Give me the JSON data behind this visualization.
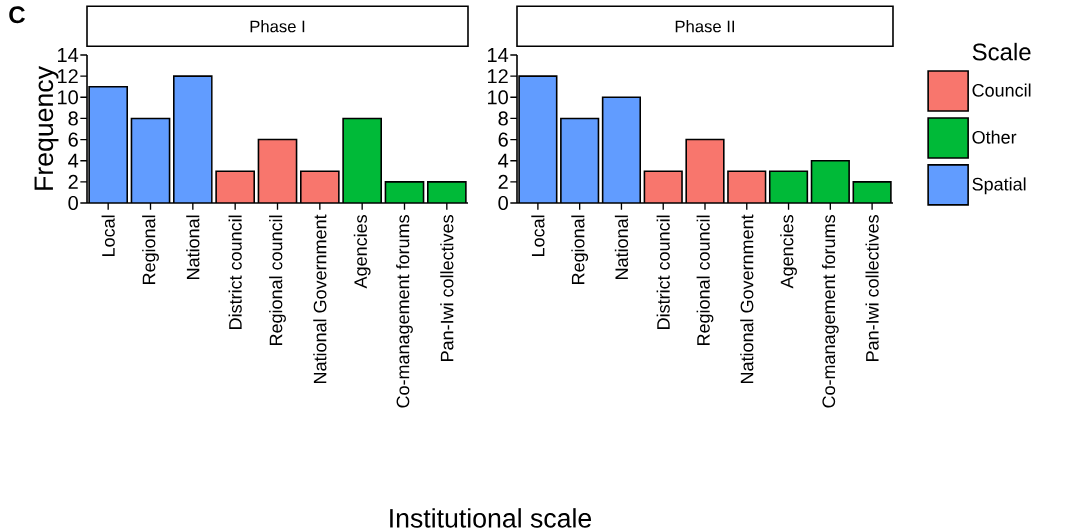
{
  "chart_data": [
    {
      "type": "bar",
      "title": "Phase I",
      "ylabel": "Frequency",
      "xlabel": "Institutional scale",
      "annotations": [
        "C"
      ],
      "categories": [
        "Local",
        "Regional",
        "National",
        "District council",
        "Regional council",
        "National Government",
        "Agencies",
        "Co-management forums",
        "Pan-Iwi collectives"
      ],
      "series": [
        {
          "color": "#f8766d",
          "values": [
            null,
            null,
            null,
            3,
            6,
            3,
            null,
            null,
            null
          ]
        },
        {
          "color": "#00ba38",
          "values": [
            null,
            null,
            null,
            null,
            null,
            null,
            8,
            2,
            2
          ]
        },
        {
          "color": "#619cff",
          "values": [
            11,
            8,
            12,
            null,
            null,
            null,
            null,
            null,
            null
          ]
        }
      ],
      "ylim": [
        0,
        14
      ],
      "yticks": [
        0,
        2,
        4,
        6,
        8,
        10,
        12,
        14
      ]
    },
    {
      "type": "bar",
      "title": "Phase II",
      "legend": "right",
      "legend_title": "Scale",
      "categories": [
        "Local",
        "Regional",
        "National",
        "District council",
        "Regional council",
        "National Government",
        "Agencies",
        "Co-management forums",
        "Pan-Iwi collectives"
      ],
      "series": [
        {
          "name": "Council",
          "color": "#f8766d",
          "values": [
            null,
            null,
            null,
            3,
            6,
            3,
            null,
            null,
            null
          ]
        },
        {
          "name": "Other",
          "color": "#00ba38",
          "values": [
            null,
            null,
            null,
            null,
            null,
            null,
            3,
            4,
            2
          ]
        },
        {
          "name": "Spatial",
          "color": "#619cff",
          "values": [
            12,
            8,
            10,
            null,
            null,
            null,
            null,
            null,
            null
          ]
        }
      ],
      "ylim": [
        0,
        14
      ],
      "yticks": [
        0,
        2,
        4,
        6,
        8,
        10,
        12,
        14
      ]
    }
  ]
}
